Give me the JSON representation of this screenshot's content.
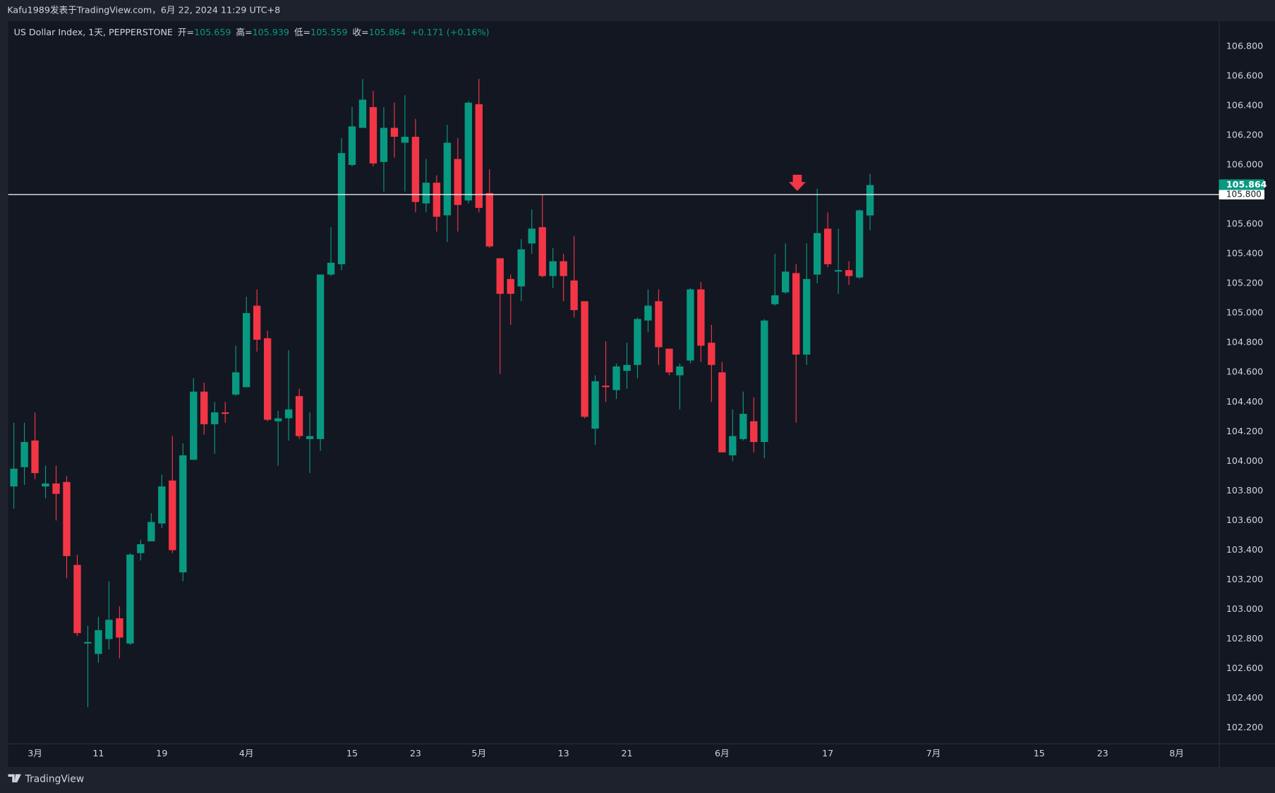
{
  "page_header": "Kafu1989发表于TradingView.com，6月 22, 2024 11:29 UTC+8",
  "footer": "TradingView",
  "chart_data": {
    "type": "candlestick",
    "title": "US Dollar Index, 1天, PEPPERSTONE",
    "legend_labels": {
      "open": "开=",
      "high": "高=",
      "low": "低=",
      "close": "收="
    },
    "change": "+0.171 (+0.16%)",
    "up_color": "#089981",
    "down_color": "#f23645",
    "categories": [
      null,
      null,
      "3月",
      null,
      null,
      null,
      null,
      null,
      "11",
      null,
      null,
      null,
      null,
      null,
      "19",
      null,
      null,
      null,
      null,
      null,
      null,
      null,
      "4月",
      null,
      null,
      null,
      null,
      null,
      null,
      null,
      null,
      null,
      "15",
      null,
      null,
      null,
      null,
      null,
      "23",
      null,
      null,
      null,
      null,
      null,
      "5月",
      null,
      null,
      null,
      null,
      null,
      null,
      null,
      "13",
      null,
      null,
      null,
      null,
      null,
      "21",
      null,
      null,
      null,
      null,
      null,
      null,
      null,
      null,
      "6月",
      null,
      null,
      null,
      null,
      null,
      null,
      null,
      null,
      null,
      "17",
      null,
      null,
      null,
      null,
      null,
      null,
      null,
      null,
      null,
      "7月",
      null,
      null,
      null,
      null,
      null,
      null,
      null,
      null,
      null,
      "15",
      null,
      null,
      null,
      null,
      null,
      "23",
      null,
      null,
      null,
      null,
      null,
      null,
      "8月"
    ],
    "open": [
      103.83,
      103.96,
      104.14,
      103.83,
      103.85,
      103.86,
      103.3,
      102.77,
      102.7,
      102.8,
      102.94,
      102.77,
      103.38,
      103.46,
      103.58,
      103.87,
      103.25,
      104.01,
      104.47,
      104.25,
      104.33,
      104.45,
      104.5,
      105.05,
      104.83,
      104.27,
      104.29,
      104.44,
      104.15,
      104.15,
      105.26,
      105.33,
      106.0,
      106.25,
      106.39,
      106.02,
      106.25,
      106.15,
      106.19,
      105.74,
      105.88,
      105.66,
      106.04,
      105.76,
      106.41,
      105.81,
      105.37,
      105.23,
      105.18,
      105.47,
      105.58,
      105.25,
      105.35,
      105.22,
      105.08,
      104.22,
      104.51,
      104.48,
      104.61,
      104.65,
      104.95,
      105.08,
      104.76,
      104.58,
      104.68,
      105.16,
      104.8,
      104.6,
      104.04,
      104.15,
      104.27,
      104.13,
      105.06,
      105.14,
      105.27,
      104.72,
      105.26,
      105.57,
      105.28,
      105.29,
      105.24,
      105.659,
      null,
      null,
      null,
      null,
      null,
      null,
      null,
      null,
      null,
      null,
      null,
      null,
      null,
      null,
      null,
      null,
      null,
      null,
      null,
      null,
      null,
      null,
      null,
      null,
      null,
      null,
      null,
      null,
      null
    ],
    "high": [
      104.26,
      104.26,
      104.33,
      103.97,
      103.97,
      103.9,
      103.37,
      102.89,
      102.95,
      103.19,
      103.02,
      103.38,
      103.47,
      103.65,
      103.91,
      104.17,
      104.12,
      104.56,
      104.53,
      104.4,
      104.4,
      104.78,
      105.11,
      105.16,
      104.88,
      104.34,
      104.75,
      104.49,
      104.33,
      105.26,
      105.58,
      106.18,
      106.39,
      106.58,
      106.5,
      106.39,
      106.42,
      106.47,
      106.31,
      106.04,
      105.93,
      106.27,
      106.18,
      106.43,
      106.58,
      105.97,
      105.37,
      105.26,
      105.5,
      105.7,
      105.8,
      105.44,
      105.4,
      105.52,
      105.08,
      104.58,
      104.81,
      104.66,
      104.8,
      104.97,
      105.16,
      105.16,
      104.76,
      104.66,
      105.17,
      105.21,
      104.92,
      104.67,
      104.35,
      104.47,
      104.43,
      104.96,
      105.4,
      105.47,
      105.33,
      105.47,
      105.84,
      105.68,
      105.57,
      105.35,
      105.7,
      105.939,
      null,
      null,
      null,
      null,
      null,
      null,
      null,
      null,
      null,
      null,
      null,
      null,
      null,
      null,
      null,
      null,
      null,
      null,
      null,
      null,
      null,
      null,
      null,
      null,
      null,
      null,
      null,
      null,
      null
    ],
    "low": [
      103.68,
      103.84,
      103.88,
      103.75,
      103.6,
      103.21,
      102.82,
      102.34,
      102.64,
      102.73,
      102.67,
      102.76,
      103.33,
      103.46,
      103.55,
      103.38,
      103.19,
      104.01,
      104.18,
      104.05,
      104.26,
      104.44,
      104.5,
      104.74,
      104.27,
      103.97,
      104.14,
      104.15,
      103.92,
      104.07,
      105.25,
      105.29,
      105.99,
      106.25,
      105.99,
      105.82,
      106.05,
      105.82,
      105.68,
      105.68,
      105.55,
      105.48,
      105.55,
      105.74,
      105.68,
      105.44,
      104.59,
      104.92,
      105.08,
      105.4,
      105.24,
      105.17,
      105.08,
      104.97,
      104.29,
      104.11,
      104.4,
      104.42,
      104.49,
      104.56,
      104.87,
      104.65,
      104.58,
      104.35,
      104.66,
      104.67,
      104.4,
      104.06,
      104.0,
      104.14,
      104.06,
      104.02,
      105.05,
      105.13,
      104.26,
      104.65,
      105.2,
      105.31,
      105.13,
      105.19,
      105.23,
      105.559,
      null,
      null,
      null,
      null,
      null,
      null,
      null,
      null,
      null,
      null,
      null,
      null,
      null,
      null,
      null,
      null,
      null,
      null,
      null,
      null,
      null,
      null,
      null,
      null,
      null,
      null,
      null,
      null,
      null
    ],
    "close": [
      103.95,
      104.13,
      103.92,
      103.85,
      103.78,
      103.36,
      102.84,
      102.78,
      102.86,
      102.93,
      102.81,
      103.37,
      103.44,
      103.59,
      103.83,
      103.4,
      104.04,
      104.47,
      104.25,
      104.33,
      104.32,
      104.6,
      105.0,
      104.82,
      104.28,
      104.29,
      104.35,
      104.17,
      104.17,
      105.26,
      105.34,
      106.08,
      106.26,
      106.44,
      106.01,
      106.25,
      106.19,
      106.19,
      105.75,
      105.88,
      105.65,
      106.15,
      105.73,
      106.42,
      105.71,
      105.45,
      105.13,
      105.13,
      105.43,
      105.57,
      105.25,
      105.35,
      105.25,
      105.02,
      104.3,
      104.54,
      104.5,
      104.64,
      104.65,
      104.96,
      105.05,
      104.77,
      104.6,
      104.64,
      105.16,
      104.78,
      104.65,
      104.06,
      104.17,
      104.32,
      104.13,
      104.95,
      105.12,
      105.28,
      104.72,
      105.23,
      105.54,
      105.33,
      105.29,
      105.25,
      105.693,
      105.864,
      null,
      null,
      null,
      null,
      null,
      null,
      null,
      null,
      null,
      null,
      null,
      null,
      null,
      null,
      null,
      null,
      null,
      null,
      null,
      null,
      null,
      null,
      null,
      null,
      null,
      null,
      null,
      null,
      null
    ],
    "ylim": [
      102.096,
      106.97
    ],
    "yticks": [
      {
        "value": 102.2,
        "label": "102.200"
      },
      {
        "value": 102.4,
        "label": "102.400"
      },
      {
        "value": 102.6,
        "label": "102.600"
      },
      {
        "value": 102.8,
        "label": "102.800"
      },
      {
        "value": 103.0,
        "label": "103.000"
      },
      {
        "value": 103.2,
        "label": "103.200"
      },
      {
        "value": 103.4,
        "label": "103.400"
      },
      {
        "value": 103.6,
        "label": "103.600"
      },
      {
        "value": 103.8,
        "label": "103.800"
      },
      {
        "value": 104.0,
        "label": "104.000"
      },
      {
        "value": 104.2,
        "label": "104.200"
      },
      {
        "value": 104.4,
        "label": "104.400"
      },
      {
        "value": 104.6,
        "label": "104.600"
      },
      {
        "value": 104.8,
        "label": "104.800"
      },
      {
        "value": 105.0,
        "label": "105.000"
      },
      {
        "value": 105.2,
        "label": "105.200"
      },
      {
        "value": 105.4,
        "label": "105.400"
      },
      {
        "value": 105.6,
        "label": "105.600"
      },
      {
        "value": 105.8,
        "label": "105.800"
      },
      {
        "value": 106.0,
        "label": "106.000"
      },
      {
        "value": 106.2,
        "label": "106.200"
      },
      {
        "value": 106.4,
        "label": "106.400"
      },
      {
        "value": 106.6,
        "label": "106.600"
      },
      {
        "value": 106.8,
        "label": "106.800"
      }
    ],
    "hline": {
      "value": 105.8,
      "label": "105.800"
    },
    "grid": false
  }
}
